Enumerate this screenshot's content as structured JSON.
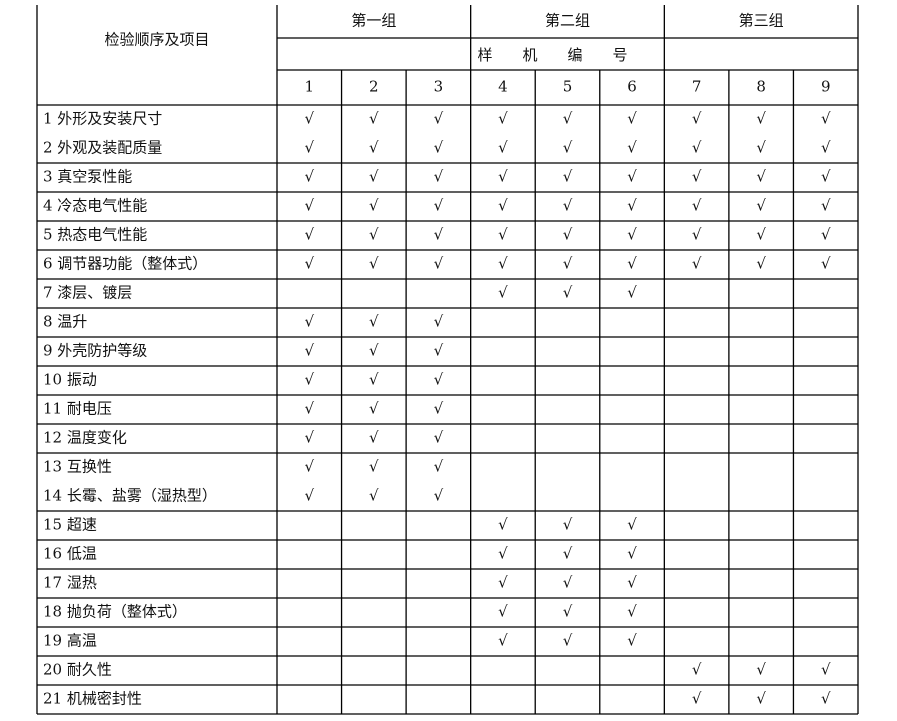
{
  "header": {
    "corner": "检验顺序及项目",
    "groups": [
      "第一组",
      "第二组",
      "第三组"
    ],
    "sample_label": "样机编号",
    "numbers": [
      "1",
      "2",
      "3",
      "4",
      "5",
      "6",
      "7",
      "8",
      "9"
    ]
  },
  "table": {
    "rows": [
      {
        "item": "1 外形及安装尺寸",
        "checks": [
          "√",
          "√",
          "√",
          "√",
          "√",
          "√",
          "√",
          "√",
          "√"
        ]
      },
      {
        "item": "2 外观及装配质量",
        "checks": [
          "√",
          "√",
          "√",
          "√",
          "√",
          "√",
          "√",
          "√",
          "√"
        ]
      },
      {
        "item": "3 真空泵性能",
        "checks": [
          "√",
          "√",
          "√",
          "√",
          "√",
          "√",
          "√",
          "√",
          "√"
        ]
      },
      {
        "item": "4 冷态电气性能",
        "checks": [
          "√",
          "√",
          "√",
          "√",
          "√",
          "√",
          "√",
          "√",
          "√"
        ]
      },
      {
        "item": "5 热态电气性能",
        "checks": [
          "√",
          "√",
          "√",
          "√",
          "√",
          "√",
          "√",
          "√",
          "√"
        ]
      },
      {
        "item": "6 调节器功能（整体式）",
        "checks": [
          "√",
          "√",
          "√",
          "√",
          "√",
          "√",
          "√",
          "√",
          "√"
        ]
      },
      {
        "item": "7 漆层、镀层",
        "checks": [
          null,
          null,
          null,
          "√",
          "√",
          "√",
          null,
          null,
          null
        ]
      },
      {
        "item": "8 温升",
        "checks": [
          "√",
          "√",
          "√",
          null,
          null,
          null,
          null,
          null,
          null
        ]
      },
      {
        "item": "9 外壳防护等级",
        "checks": [
          "√",
          "√",
          "√",
          null,
          null,
          null,
          null,
          null,
          null
        ]
      },
      {
        "item": "10 振动",
        "checks": [
          "√",
          "√",
          "√",
          null,
          null,
          null,
          null,
          null,
          null
        ]
      },
      {
        "item": "11 耐电压",
        "checks": [
          "√",
          "√",
          "√",
          null,
          null,
          null,
          null,
          null,
          null
        ]
      },
      {
        "item": "12 温度变化",
        "checks": [
          "√",
          "√",
          "√",
          null,
          null,
          null,
          null,
          null,
          null
        ]
      },
      {
        "item": "13 互换性",
        "checks": [
          "√",
          "√",
          "√",
          null,
          null,
          null,
          null,
          null,
          null
        ]
      },
      {
        "item": "14 长霉、盐雾（湿热型）",
        "checks": [
          "√",
          "√",
          "√",
          null,
          null,
          null,
          null,
          null,
          null
        ]
      },
      {
        "item": "15 超速",
        "checks": [
          null,
          null,
          null,
          "√",
          "√",
          "√",
          null,
          null,
          null
        ]
      },
      {
        "item": "16 低温",
        "checks": [
          null,
          null,
          null,
          "√",
          "√",
          "√",
          null,
          null,
          null
        ]
      },
      {
        "item": "17 湿热",
        "checks": [
          null,
          null,
          null,
          "√",
          "√",
          "√",
          null,
          null,
          null
        ]
      },
      {
        "item": "18 抛负荷（整体式）",
        "checks": [
          null,
          null,
          null,
          "√",
          "√",
          "√",
          null,
          null,
          null
        ]
      },
      {
        "item": "19 高温",
        "checks": [
          null,
          null,
          null,
          "√",
          "√",
          "√",
          null,
          null,
          null
        ]
      },
      {
        "item": "20 耐久性",
        "checks": [
          null,
          null,
          null,
          null,
          null,
          null,
          "√",
          "√",
          "√"
        ]
      },
      {
        "item": "21 机械密封性",
        "checks": [
          null,
          null,
          null,
          null,
          null,
          null,
          "√",
          "√",
          "√"
        ]
      }
    ]
  }
}
